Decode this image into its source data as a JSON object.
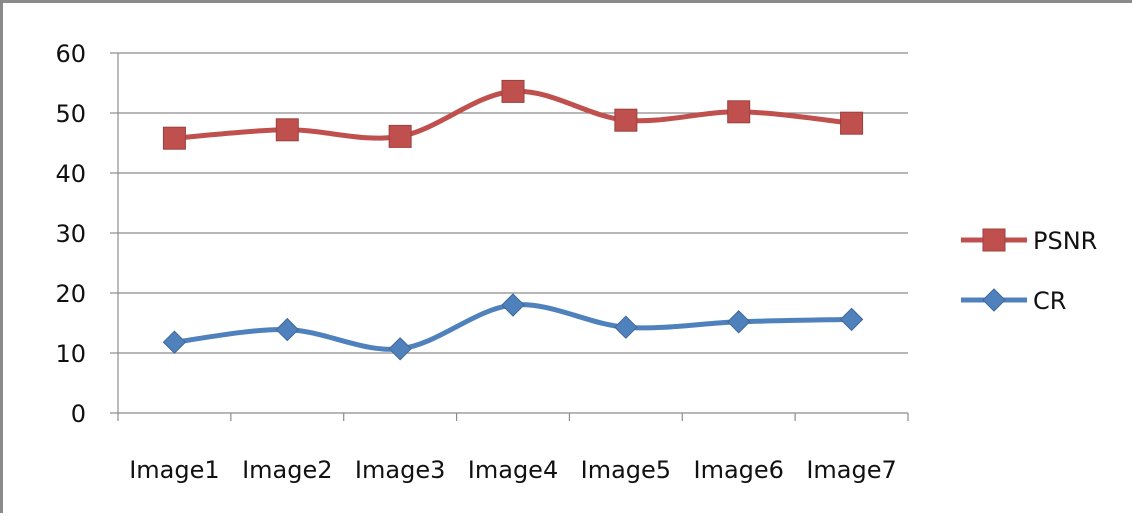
{
  "chart_data": {
    "type": "line",
    "title": "",
    "xlabel": "",
    "ylabel": "",
    "categories": [
      "Image1",
      "Image2",
      "Image3",
      "Image4",
      "Image5",
      "Image6",
      "Image7"
    ],
    "ylim": [
      0,
      60
    ],
    "yticks": [
      "0",
      "10",
      "20",
      "30",
      "40",
      "50",
      "60"
    ],
    "grid": "horizontal",
    "legend": "right",
    "smooth": true,
    "series": [
      {
        "name": "PSNR",
        "color": "#c0504d",
        "marker": "square",
        "values": [
          45.8,
          47.2,
          46.1,
          53.6,
          48.8,
          50.2,
          48.3
        ]
      },
      {
        "name": "CR",
        "color": "#4f81bd",
        "marker": "diamond",
        "values": [
          11.8,
          13.9,
          10.7,
          18.0,
          14.3,
          15.2,
          15.6
        ]
      }
    ]
  }
}
